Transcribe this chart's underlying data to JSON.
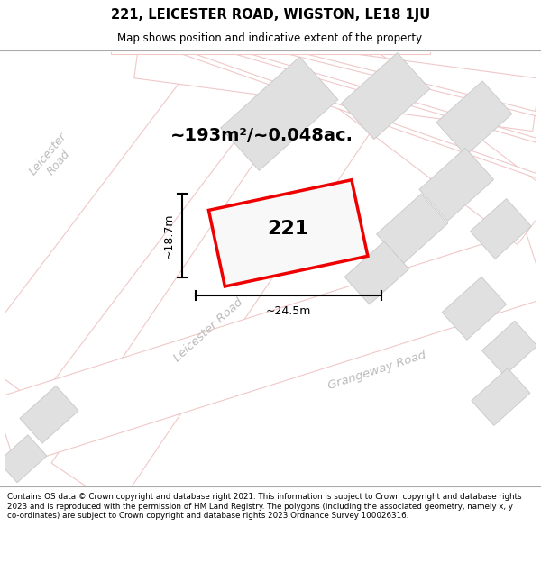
{
  "title": "221, LEICESTER ROAD, WIGSTON, LE18 1JU",
  "subtitle": "Map shows position and indicative extent of the property.",
  "area_label": "~193m²/~0.048ac.",
  "property_number": "221",
  "dim_width": "~24.5m",
  "dim_height": "~18.7m",
  "footer": "Contains OS data © Crown copyright and database right 2021. This information is subject to Crown copyright and database rights 2023 and is reproduced with the permission of HM Land Registry. The polygons (including the associated geometry, namely x, y co-ordinates) are subject to Crown copyright and database rights 2023 Ordnance Survey 100026316.",
  "map_bg": "#f8f8f8",
  "road_outline_color": "#f0c8c8",
  "building_color": "#e0e0e0",
  "building_outline_color": "#c8c8c8",
  "property_edge_color": "#ee0000",
  "property_fill": "#f8f8f8"
}
